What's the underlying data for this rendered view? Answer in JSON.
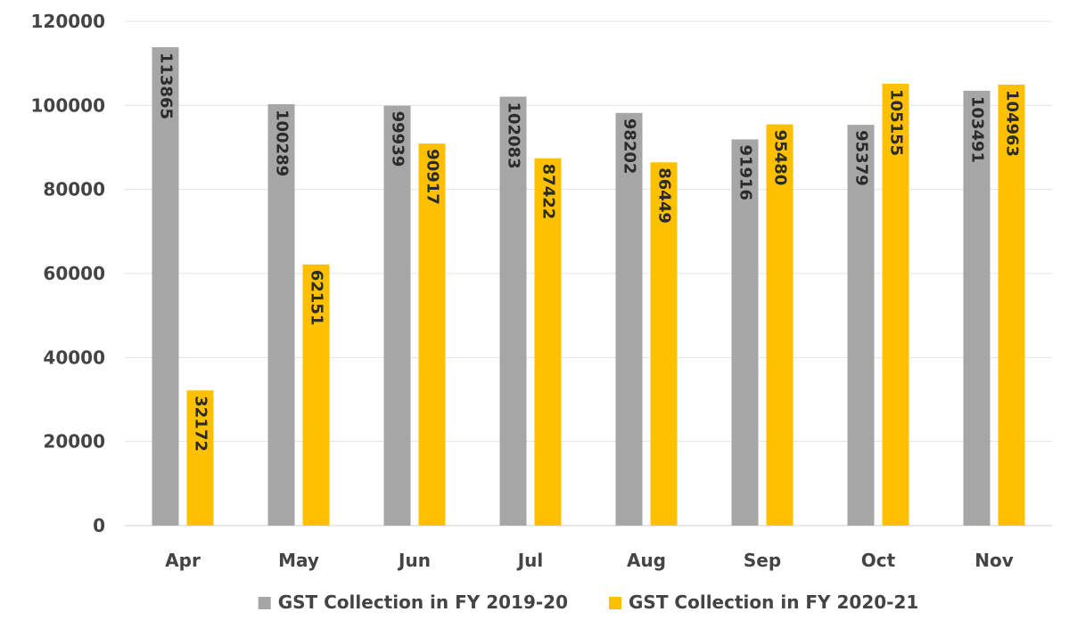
{
  "chart_data": {
    "type": "bar",
    "title": "",
    "xlabel": "",
    "ylabel": "",
    "categories": [
      "Apr",
      "May",
      "Jun",
      "Jul",
      "Aug",
      "Sep",
      "Oct",
      "Nov"
    ],
    "series": [
      {
        "name": "GST Collection in FY 2019-20",
        "color": "#a6a6a6",
        "values": [
          113865,
          100289,
          99939,
          102083,
          98202,
          91916,
          95379,
          103491
        ]
      },
      {
        "name": "GST Collection in FY 2020-21",
        "color": "#ffc000",
        "values": [
          32172,
          62151,
          90917,
          87422,
          86449,
          95480,
          105155,
          104963
        ]
      }
    ],
    "ylim": [
      0,
      120000
    ],
    "yticks": [
      0,
      20000,
      40000,
      60000,
      80000,
      100000,
      120000
    ],
    "grid": true,
    "legend_position": "bottom",
    "data_labels": "inside-end-rotated"
  }
}
